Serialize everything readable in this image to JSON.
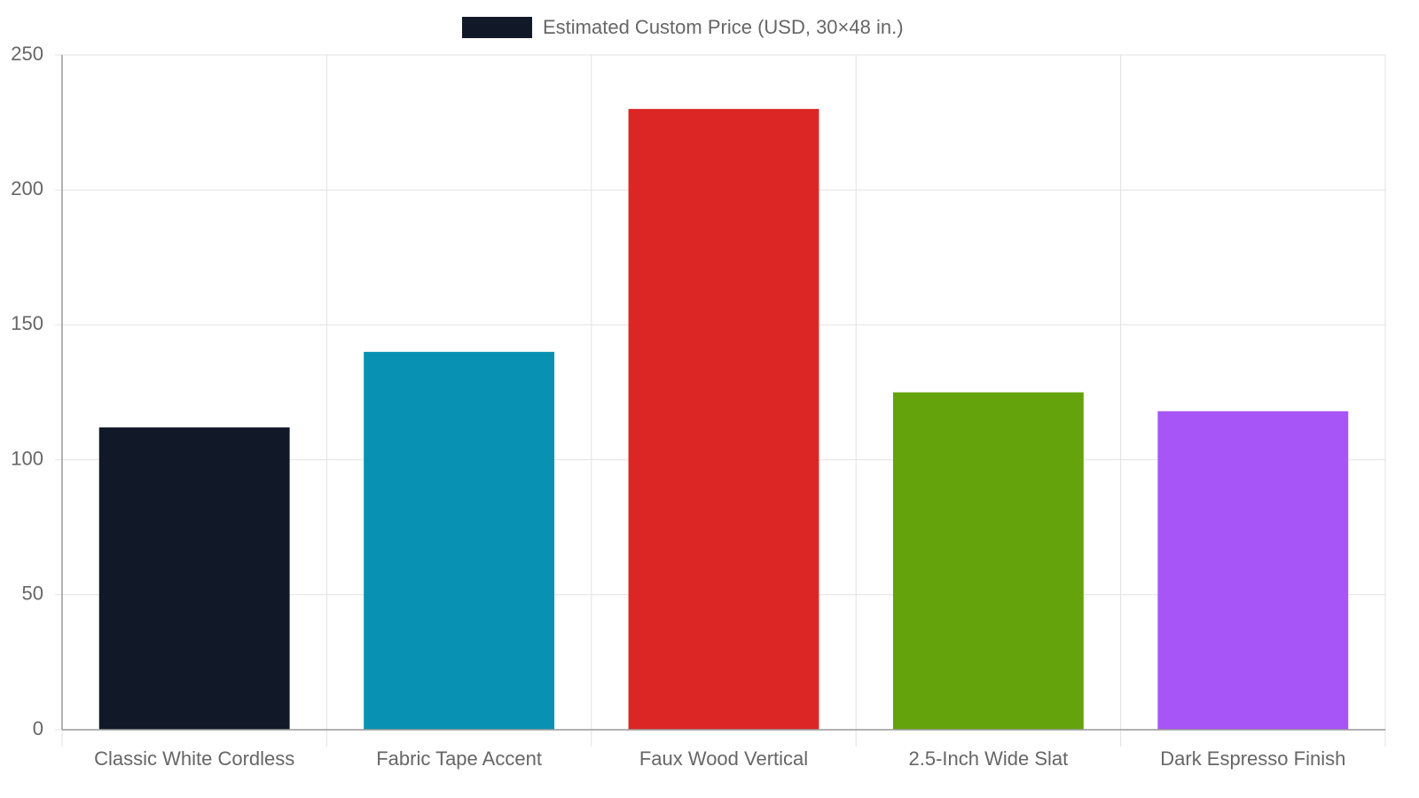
{
  "chart_data": {
    "type": "bar",
    "categories": [
      "Classic White Cordless",
      "Fabric Tape Accent",
      "Faux Wood Vertical",
      "2.5-Inch Wide Slat",
      "Dark Espresso Finish"
    ],
    "series": [
      {
        "name": "Estimated Custom Price (USD, 30×48 in.)",
        "colors": [
          "#111827",
          "#0891b2",
          "#dc2626",
          "#65a30d",
          "#a855f7"
        ],
        "values": [
          112,
          140,
          230,
          125,
          118
        ]
      }
    ],
    "ylim": [
      0,
      250
    ],
    "yticks": [
      0,
      50,
      100,
      150,
      200,
      250
    ],
    "grid": true,
    "legend": "top"
  }
}
